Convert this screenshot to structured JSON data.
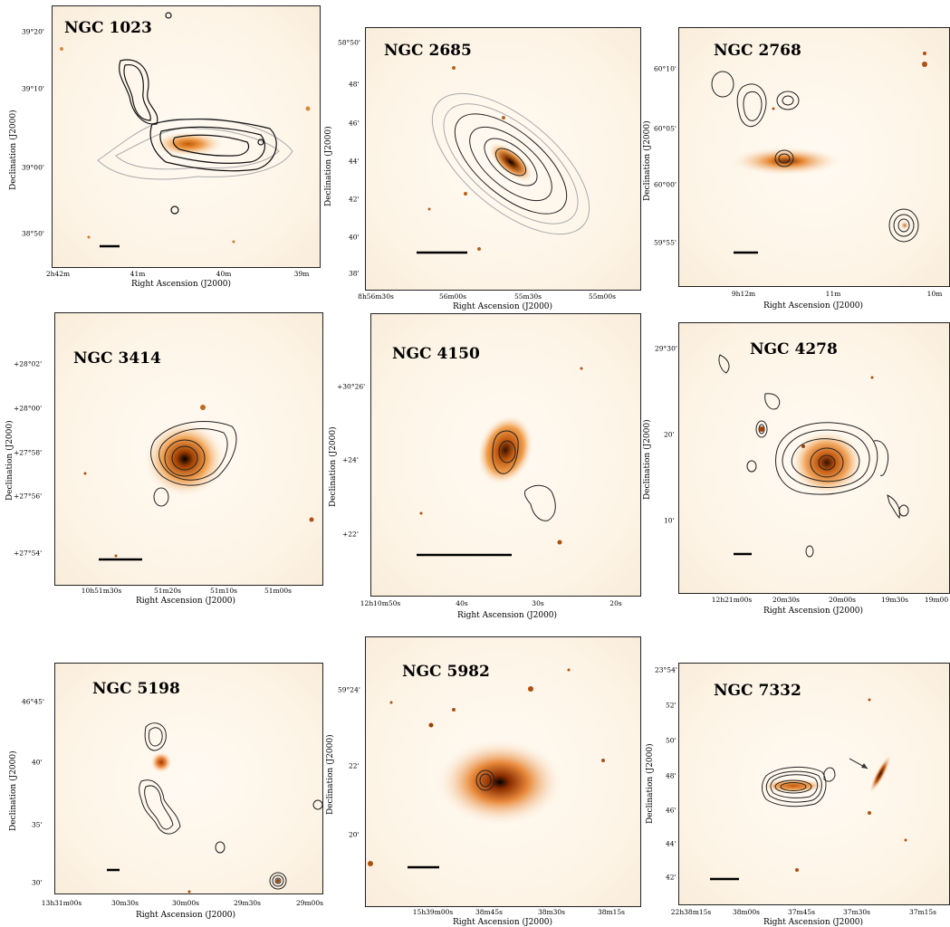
{
  "figure": {
    "panels": [
      {
        "name": "NGC 1023",
        "xlabel": "Right Ascension (J2000)",
        "ylabel": "Declination (J2000)",
        "xticks": [
          "2h42m",
          "41m",
          "40m",
          "39m"
        ],
        "yticks": [
          "39°20'",
          "39°10'",
          "39°00'",
          "38°50'"
        ]
      },
      {
        "name": "NGC 2685",
        "xlabel": "Right Ascension (J2000)",
        "ylabel": "Declination (J2000)",
        "xticks": [
          "8h56m30s",
          "56m00s",
          "55m30s",
          "55m00s"
        ],
        "yticks": [
          "58°50'",
          "48'",
          "46'",
          "44'",
          "42'",
          "40'",
          "38'"
        ]
      },
      {
        "name": "NGC 2768",
        "xlabel": "Right Ascension (J2000)",
        "ylabel": "Declination (J2000)",
        "xticks": [
          "9h12m",
          "11m",
          "10m"
        ],
        "yticks": [
          "60°10'",
          "60°05'",
          "60°00'",
          "59°55'"
        ]
      },
      {
        "name": "NGC 3414",
        "xlabel": "Right Ascension (J2000)",
        "ylabel": "Declination (J2000)",
        "xticks": [
          "10h51m30s",
          "51m20s",
          "51m10s",
          "51m00s"
        ],
        "yticks": [
          "+28°02'",
          "+28°00'",
          "+27°58'",
          "+27°56'",
          "+27°54'"
        ]
      },
      {
        "name": "NGC 4150",
        "xlabel": "Right Ascension (J2000)",
        "ylabel": "Declination (J2000)",
        "xticks": [
          "12h10m50s",
          "40s",
          "30s",
          "20s"
        ],
        "yticks": [
          "+30°26'",
          "+24'",
          "+22'"
        ]
      },
      {
        "name": "NGC 4278",
        "xlabel": "Right Ascension (J2000)",
        "ylabel": "Declination (J2000)",
        "xticks": [
          "12h21m00s",
          "20m30s",
          "20m00s",
          "19m30s",
          "19m00"
        ],
        "yticks": [
          "29°30'",
          "20'",
          "10'"
        ]
      },
      {
        "name": "NGC 5198",
        "xlabel": "Right Ascension (J2000)",
        "ylabel": "Declination (J2000)",
        "xticks": [
          "13h31m00s",
          "30m30s",
          "30m00s",
          "29m30s",
          "29m00s"
        ],
        "yticks": [
          "46°45'",
          "40'",
          "35'",
          "30'"
        ]
      },
      {
        "name": "NGC 5982",
        "xlabel": "Right Ascension (J2000)",
        "ylabel": "Declination (J2000)",
        "xticks": [
          "15h39m00s",
          "38m45s",
          "38m30s",
          "38m15s"
        ],
        "yticks": [
          "59°24'",
          "22'",
          "20'"
        ]
      },
      {
        "name": "NGC 7332",
        "xlabel": "Right Ascension (J2000)",
        "ylabel": "Declination (J2000)",
        "xticks": [
          "22h38m15s",
          "38m00s",
          "37m45s",
          "37m30s",
          "37m15s"
        ],
        "yticks": [
          "23°54'",
          "52'",
          "50'",
          "48'",
          "46'",
          "44'",
          "42'"
        ]
      }
    ]
  }
}
